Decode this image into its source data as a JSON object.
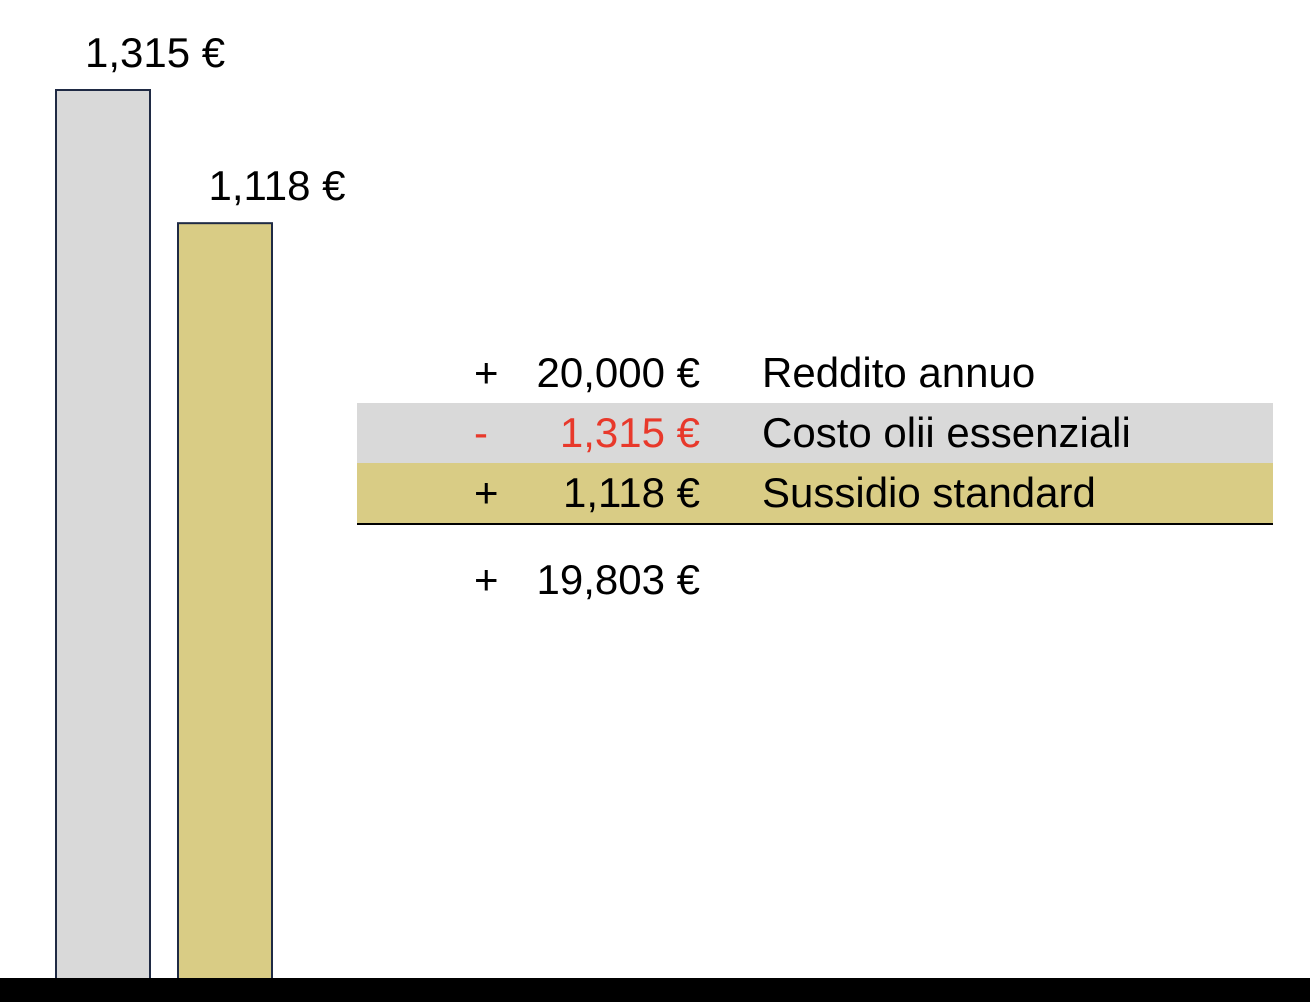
{
  "chart_data": {
    "type": "bar",
    "categories": [
      "Costo olii essenziali",
      "Sussidio standard"
    ],
    "values": [
      1315,
      1118
    ],
    "value_labels": [
      "1,315 €",
      "1,118 €"
    ],
    "colors": [
      "#d9d9d9",
      "#d9cc85"
    ],
    "bar_stroke": "#1f2a44",
    "title": "",
    "xlabel": "",
    "ylabel": "",
    "ylim": [
      0,
      1315
    ],
    "grid": false
  },
  "ledger": {
    "rows": [
      {
        "sign": "+",
        "amount": "20,000 €",
        "description": "Reddito annuo",
        "background": "#ffffff",
        "color": "#000000"
      },
      {
        "sign": "-",
        "amount": "1,315 €",
        "description": "Costo olii essenziali",
        "background": "#d9d9d9",
        "color": "#e8392b"
      },
      {
        "sign": "+",
        "amount": "1,118 €",
        "description": "Sussidio standard",
        "background": "#d9cc85",
        "color": "#000000"
      }
    ],
    "total": {
      "sign": "+",
      "amount": "19,803 €"
    }
  }
}
